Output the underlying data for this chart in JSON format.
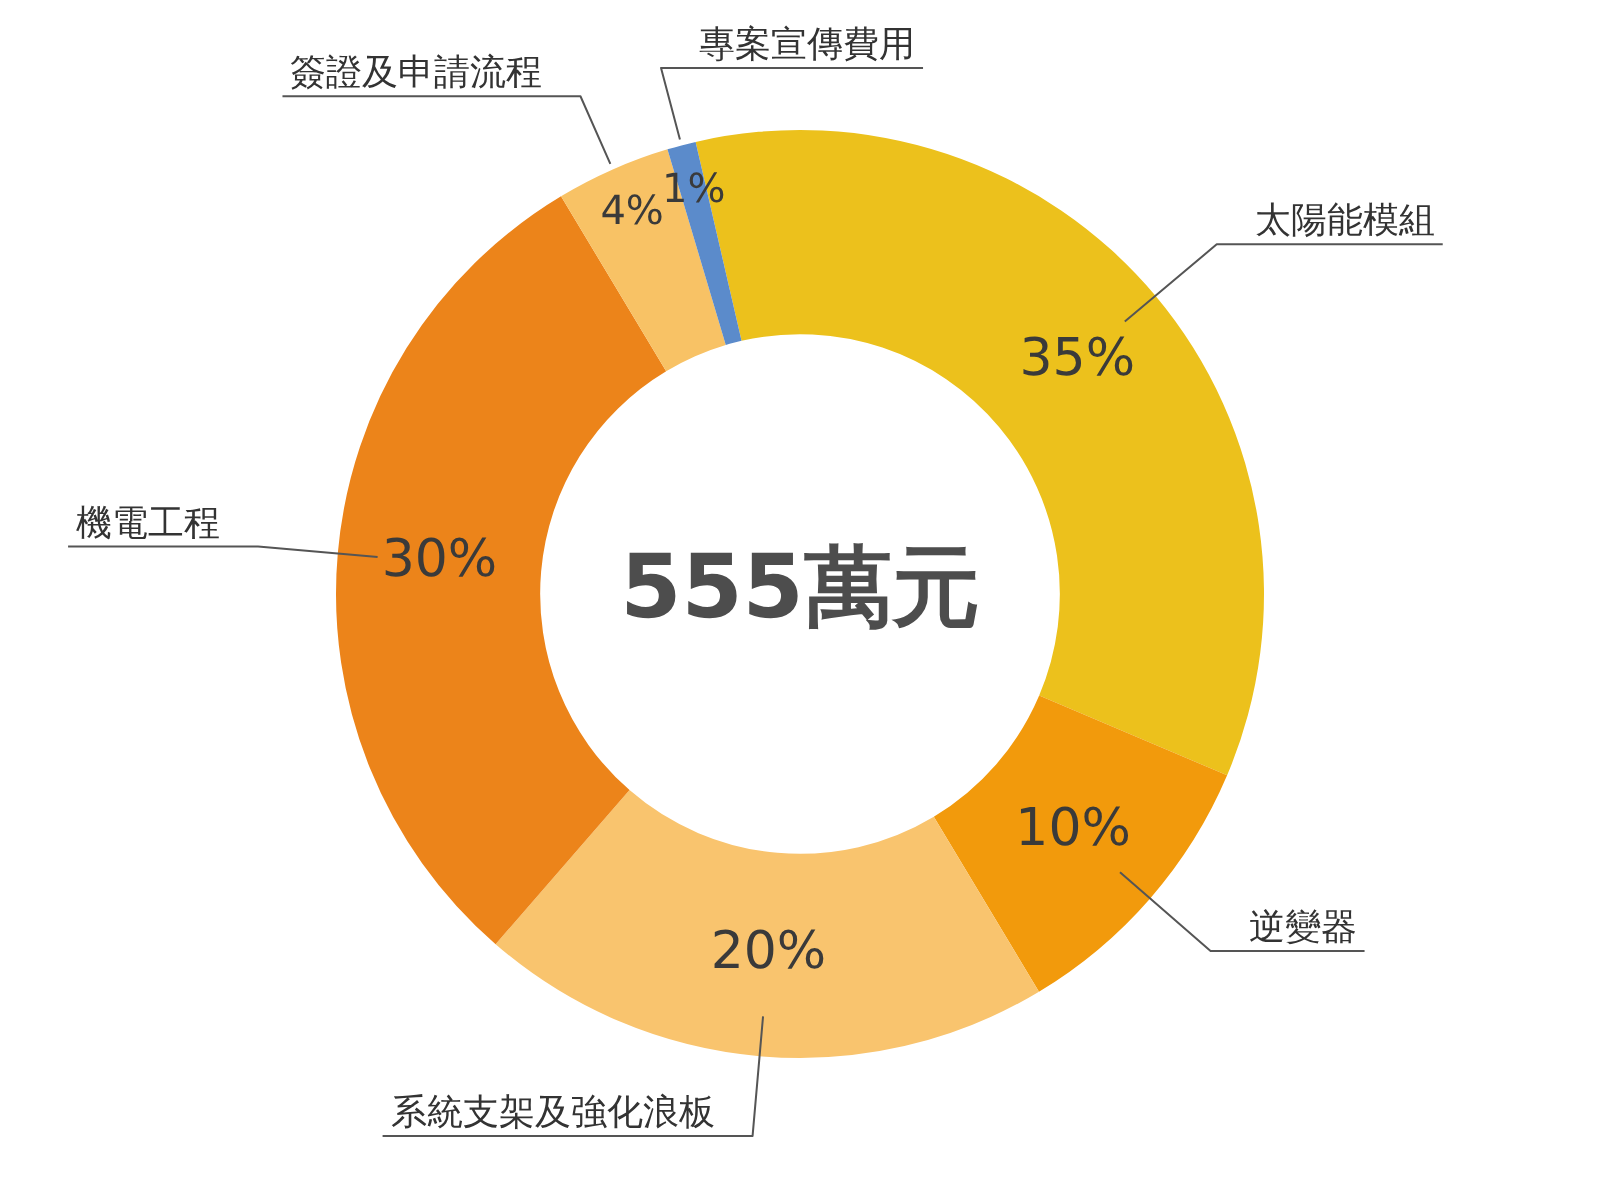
{
  "chart_data": {
    "type": "donut",
    "categories": [
      "太陽能模組",
      "逆變器",
      "系統支架及強化浪板",
      "機電工程",
      "簽證及申請流程",
      "專案宣傳費用"
    ],
    "values": [
      35,
      10,
      20,
      30,
      4,
      1
    ],
    "colors": [
      "#ecc11c",
      "#f29a0c",
      "#f9c46e",
      "#ec841a",
      "#f8c265",
      "#5b8bcb"
    ],
    "value_labels": [
      "35%",
      "10%",
      "20%",
      "30%",
      "4%",
      "1%"
    ],
    "annotations": [
      "555萬元"
    ],
    "legend": false
  }
}
